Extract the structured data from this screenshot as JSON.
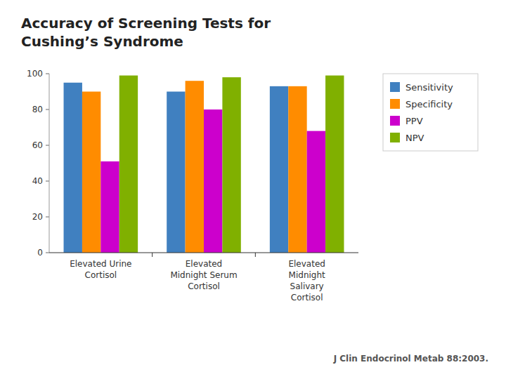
{
  "chart_data": {
    "type": "bar",
    "title": "Accuracy of Screening Tests for\nCushing’s Syndrome",
    "categories": [
      "Elevated Urine\nCortisol",
      "Elevated\nMidnight Serum\nCortisol",
      "Elevated\nMidnight\nSalivary\nCortisol"
    ],
    "series": [
      {
        "name": "Sensitivity",
        "color": "#4080C0",
        "values": [
          95,
          90,
          93
        ]
      },
      {
        "name": "Specificity",
        "color": "#FF8C00",
        "values": [
          90,
          96,
          93
        ]
      },
      {
        "name": "PPV",
        "color": "#CC00CC",
        "values": [
          51,
          80,
          68
        ]
      },
      {
        "name": "NPV",
        "color": "#80B000",
        "values": [
          99,
          98,
          99
        ]
      }
    ],
    "ylim": [
      0,
      100
    ],
    "yticks": [
      0,
      20,
      40,
      60,
      80,
      100
    ],
    "grid": false,
    "legend": "right",
    "annotations": [
      "J Clin Endocrinol Metab 88:2003."
    ]
  }
}
